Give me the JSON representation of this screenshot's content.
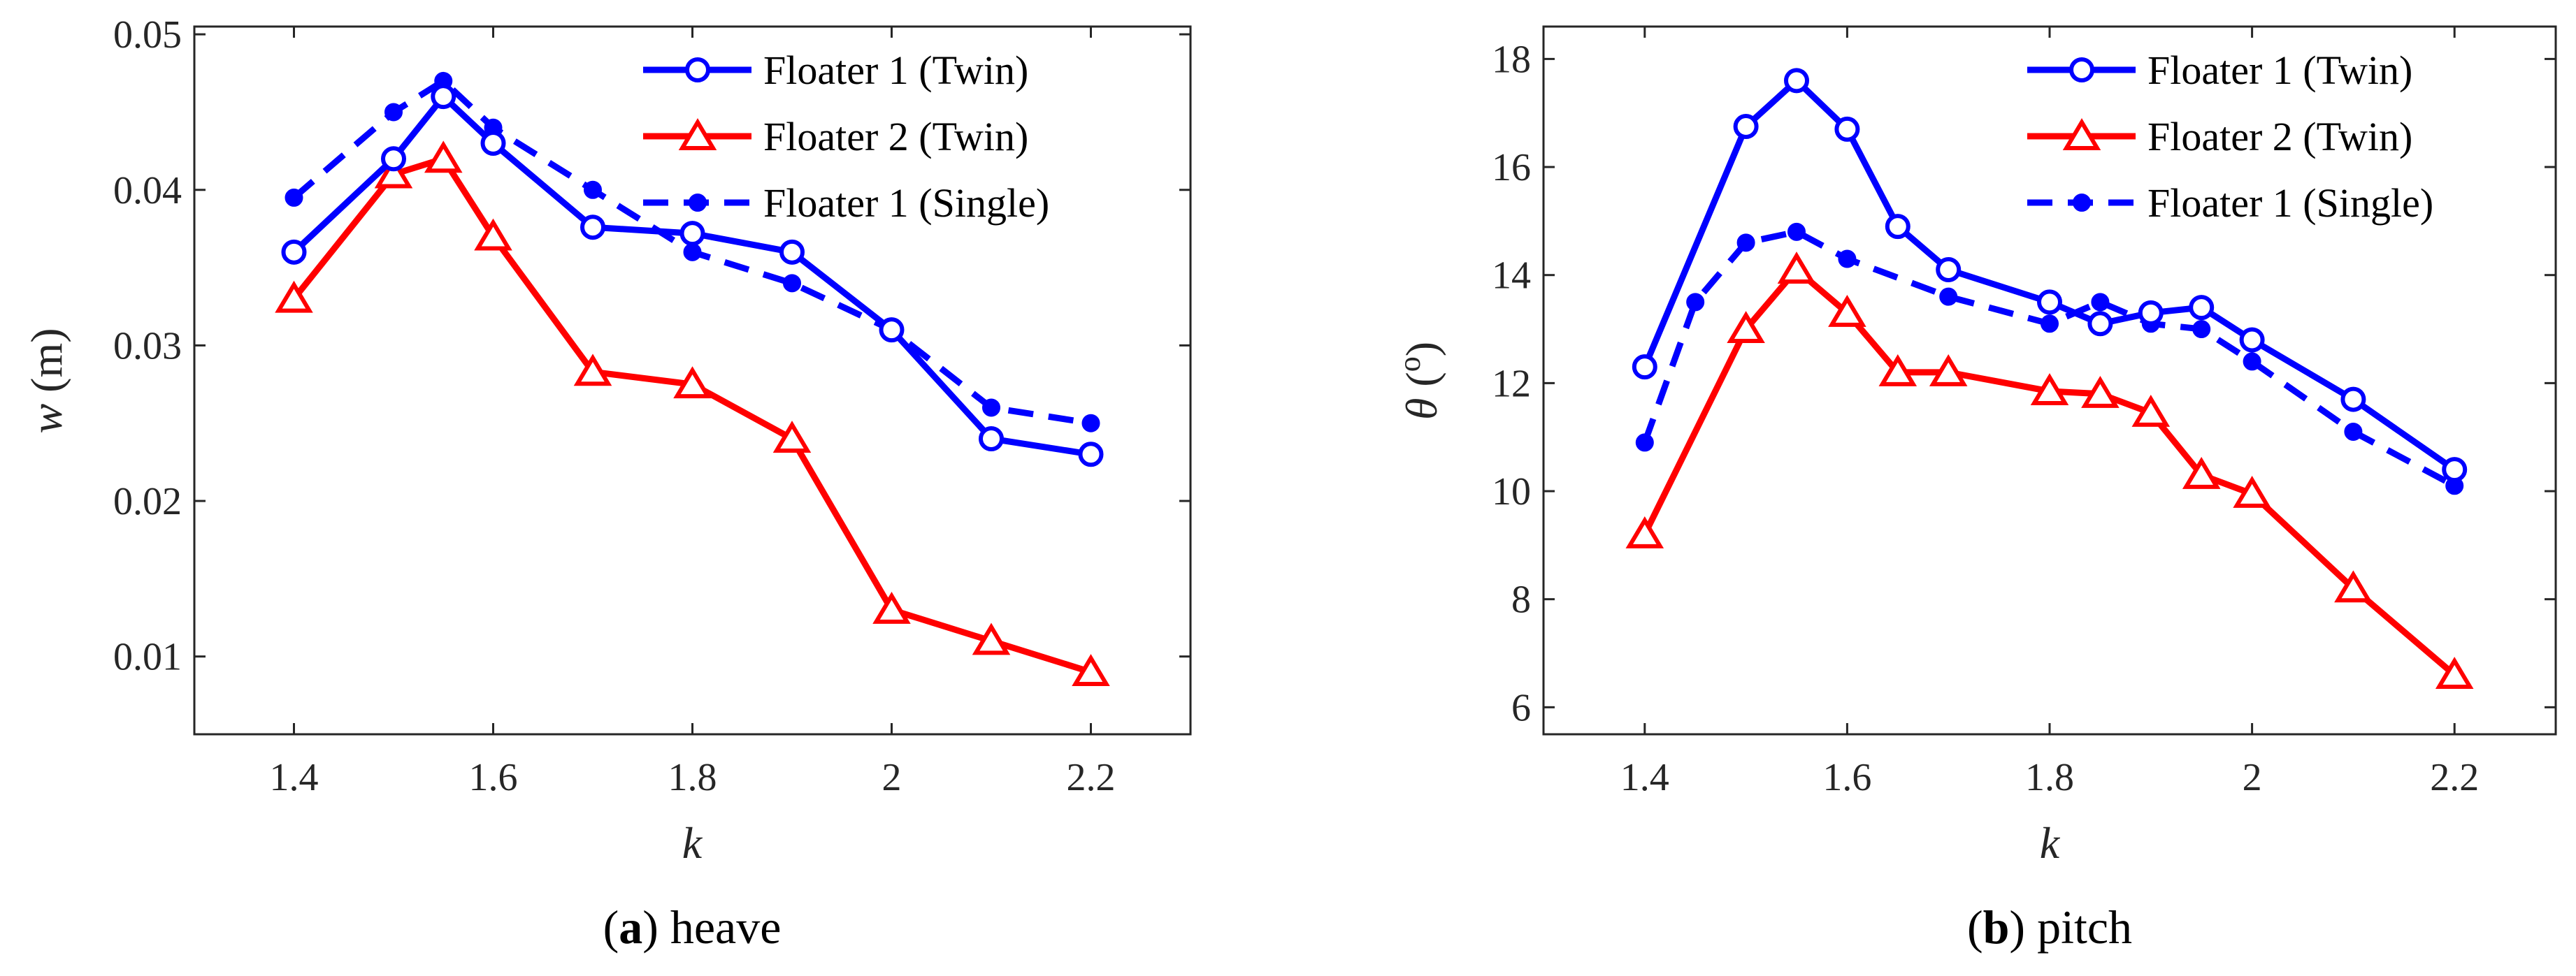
{
  "chart_data": [
    {
      "type": "line",
      "id": "heave",
      "caption_letter": "a",
      "caption_open": "(",
      "caption_close": ")",
      "caption_text": " heave",
      "xlabel": "k",
      "ylabel_italic": "w",
      "ylabel_rest": " (m)",
      "xlim": [
        1.3,
        2.3
      ],
      "ylim": [
        0.005,
        0.0505
      ],
      "xticks": [
        1.4,
        1.6,
        1.8,
        2,
        2.2
      ],
      "xtick_labels": [
        "1.4",
        "1.6",
        "1.8",
        "2",
        "2.2"
      ],
      "yticks": [
        0.01,
        0.02,
        0.03,
        0.04,
        0.05
      ],
      "ytick_labels": [
        "0.01",
        "0.02",
        "0.03",
        "0.04",
        "0.05"
      ],
      "legend_position": "top-right",
      "series": [
        {
          "name": "Floater 1 (Twin)",
          "color": "#0000ff",
          "dash": "solid",
          "marker": "circle",
          "x": [
            1.4,
            1.5,
            1.55,
            1.6,
            1.7,
            1.8,
            1.9,
            2.0,
            2.1,
            2.2
          ],
          "y": [
            0.036,
            0.042,
            0.046,
            0.043,
            0.0376,
            0.0372,
            0.036,
            0.031,
            0.024,
            0.023
          ]
        },
        {
          "name": "Floater 2 (Twin)",
          "color": "#ff0000",
          "dash": "solid",
          "marker": "triangle",
          "x": [
            1.4,
            1.5,
            1.55,
            1.6,
            1.7,
            1.8,
            1.9,
            2.0,
            2.1,
            2.2
          ],
          "y": [
            0.033,
            0.041,
            0.042,
            0.037,
            0.0283,
            0.0275,
            0.024,
            0.013,
            0.011,
            0.009
          ]
        },
        {
          "name": "Floater 1 (Single)",
          "color": "#0000ff",
          "dash": "dashed",
          "marker": "dot",
          "x": [
            1.4,
            1.5,
            1.55,
            1.6,
            1.7,
            1.8,
            1.9,
            2.0,
            2.1,
            2.2
          ],
          "y": [
            0.0395,
            0.045,
            0.047,
            0.044,
            0.04,
            0.036,
            0.034,
            0.031,
            0.026,
            0.025
          ]
        }
      ]
    },
    {
      "type": "line",
      "id": "pitch",
      "caption_letter": "b",
      "caption_open": "(",
      "caption_close": ")",
      "caption_text": " pitch",
      "xlabel": "k",
      "ylabel_italic": "θ",
      "ylabel_rest": " (",
      "ylabel_sup": "o",
      "ylabel_end": ")",
      "xlim": [
        1.3,
        2.3
      ],
      "ylim": [
        5.5,
        18.6
      ],
      "xticks": [
        1.4,
        1.6,
        1.8,
        2,
        2.2
      ],
      "xtick_labels": [
        "1.4",
        "1.6",
        "1.8",
        "2",
        "2.2"
      ],
      "yticks": [
        6,
        8,
        10,
        12,
        14,
        16,
        18
      ],
      "ytick_labels": [
        "6",
        "8",
        "10",
        "12",
        "14",
        "16",
        "18"
      ],
      "legend_position": "top-right",
      "series": [
        {
          "name": "Floater 1 (Twin)",
          "color": "#0000ff",
          "dash": "solid",
          "marker": "circle",
          "x": [
            1.4,
            1.5,
            1.55,
            1.6,
            1.65,
            1.7,
            1.8,
            1.85,
            1.9,
            1.95,
            2.0,
            2.1,
            2.2
          ],
          "y": [
            12.3,
            16.75,
            17.6,
            16.7,
            14.9,
            14.1,
            13.5,
            13.1,
            13.3,
            13.4,
            12.8,
            11.7,
            10.4
          ]
        },
        {
          "name": "Floater 2 (Twin)",
          "color": "#ff0000",
          "dash": "solid",
          "marker": "triangle",
          "x": [
            1.4,
            1.5,
            1.55,
            1.6,
            1.65,
            1.7,
            1.8,
            1.85,
            1.9,
            1.95,
            2.0,
            2.1,
            2.2
          ],
          "y": [
            9.2,
            13.0,
            14.1,
            13.3,
            12.2,
            12.2,
            11.85,
            11.8,
            11.45,
            10.3,
            9.95,
            8.2,
            6.6
          ]
        },
        {
          "name": "Floater 1 (Single)",
          "color": "#0000ff",
          "dash": "dashed",
          "marker": "dot",
          "x": [
            1.4,
            1.45,
            1.5,
            1.55,
            1.6,
            1.7,
            1.8,
            1.85,
            1.9,
            1.95,
            2.0,
            2.1,
            2.2
          ],
          "y": [
            10.9,
            13.5,
            14.6,
            14.8,
            14.3,
            13.6,
            13.1,
            13.5,
            13.1,
            13.0,
            12.4,
            11.1,
            10.1
          ]
        }
      ]
    }
  ]
}
